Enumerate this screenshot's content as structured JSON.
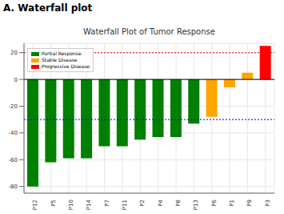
{
  "panel_label": "A. Waterfall plot",
  "chart_data": {
    "type": "bar",
    "title": "Waterfall Plot of Tumor Response",
    "categories": [
      "P12",
      "P5",
      "P10",
      "P14",
      "P7",
      "P11",
      "P2",
      "P4",
      "P8",
      "P13",
      "P6",
      "P1",
      "P9",
      "P3"
    ],
    "series": [
      {
        "name": "Partial Response",
        "color": "#008000",
        "values": [
          -80,
          -62,
          -59,
          -59,
          -50,
          -50,
          -45,
          -43,
          -43,
          -33,
          null,
          null,
          null,
          null
        ]
      },
      {
        "name": "Stable Disease",
        "color": "#FFA500",
        "values": [
          null,
          null,
          null,
          null,
          null,
          null,
          null,
          null,
          null,
          null,
          -28,
          -6,
          5,
          null
        ]
      },
      {
        "name": "Progressive Disease",
        "color": "#FF0000",
        "values": [
          null,
          null,
          null,
          null,
          null,
          null,
          null,
          null,
          null,
          null,
          null,
          null,
          null,
          25
        ]
      }
    ],
    "reference_lines": [
      {
        "value": 20,
        "color": "#FF0000",
        "line_style": "dotted"
      },
      {
        "value": -30,
        "color": "#0000FF",
        "line_style": "dotted"
      },
      {
        "value": 0,
        "color": "#000000",
        "line_style": "solid"
      }
    ],
    "ylim": [
      -85,
      27
    ],
    "yticks": [
      -80,
      -60,
      -40,
      -20,
      0,
      20
    ],
    "grid": true,
    "stacked": true,
    "legend": "upper left"
  }
}
